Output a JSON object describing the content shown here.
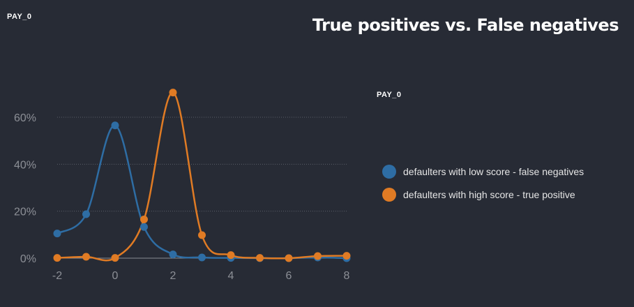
{
  "header": {
    "feature_label": "PAY_0"
  },
  "title": "True positives vs. False negatives",
  "legend": {
    "title": "PAY_0",
    "items": [
      {
        "label": "defaulters with low score - false negatives",
        "color": "#2e6da4"
      },
      {
        "label": "defaulters with high score - true positive",
        "color": "#e07b24"
      }
    ]
  },
  "chart_data": {
    "type": "line",
    "title": "True positives vs. False negatives",
    "xlabel": "",
    "ylabel": "",
    "x": [
      -2,
      -1,
      0,
      1,
      2,
      3,
      4,
      5,
      6,
      7,
      8
    ],
    "xticks": [
      -2,
      0,
      2,
      4,
      6,
      8
    ],
    "yticks": [
      0,
      20,
      40,
      60
    ],
    "ytick_labels": [
      "0%",
      "20%",
      "40%",
      "60%"
    ],
    "xlim": [
      -2,
      8
    ],
    "ylim": [
      0,
      60
    ],
    "grid": true,
    "series": [
      {
        "name": "defaulters with low score - false negatives",
        "color": "#2e6da4",
        "values": [
          10.5,
          18.7,
          56.5,
          13.3,
          1.6,
          0.3,
          0.1,
          0.0,
          0.0,
          0.3,
          0.0
        ]
      },
      {
        "name": "defaulters with high score - true positive",
        "color": "#e07b24",
        "values": [
          0.1,
          0.6,
          0.1,
          16.5,
          70.5,
          9.8,
          1.3,
          0.1,
          0.0,
          0.9,
          1.0
        ]
      }
    ]
  }
}
